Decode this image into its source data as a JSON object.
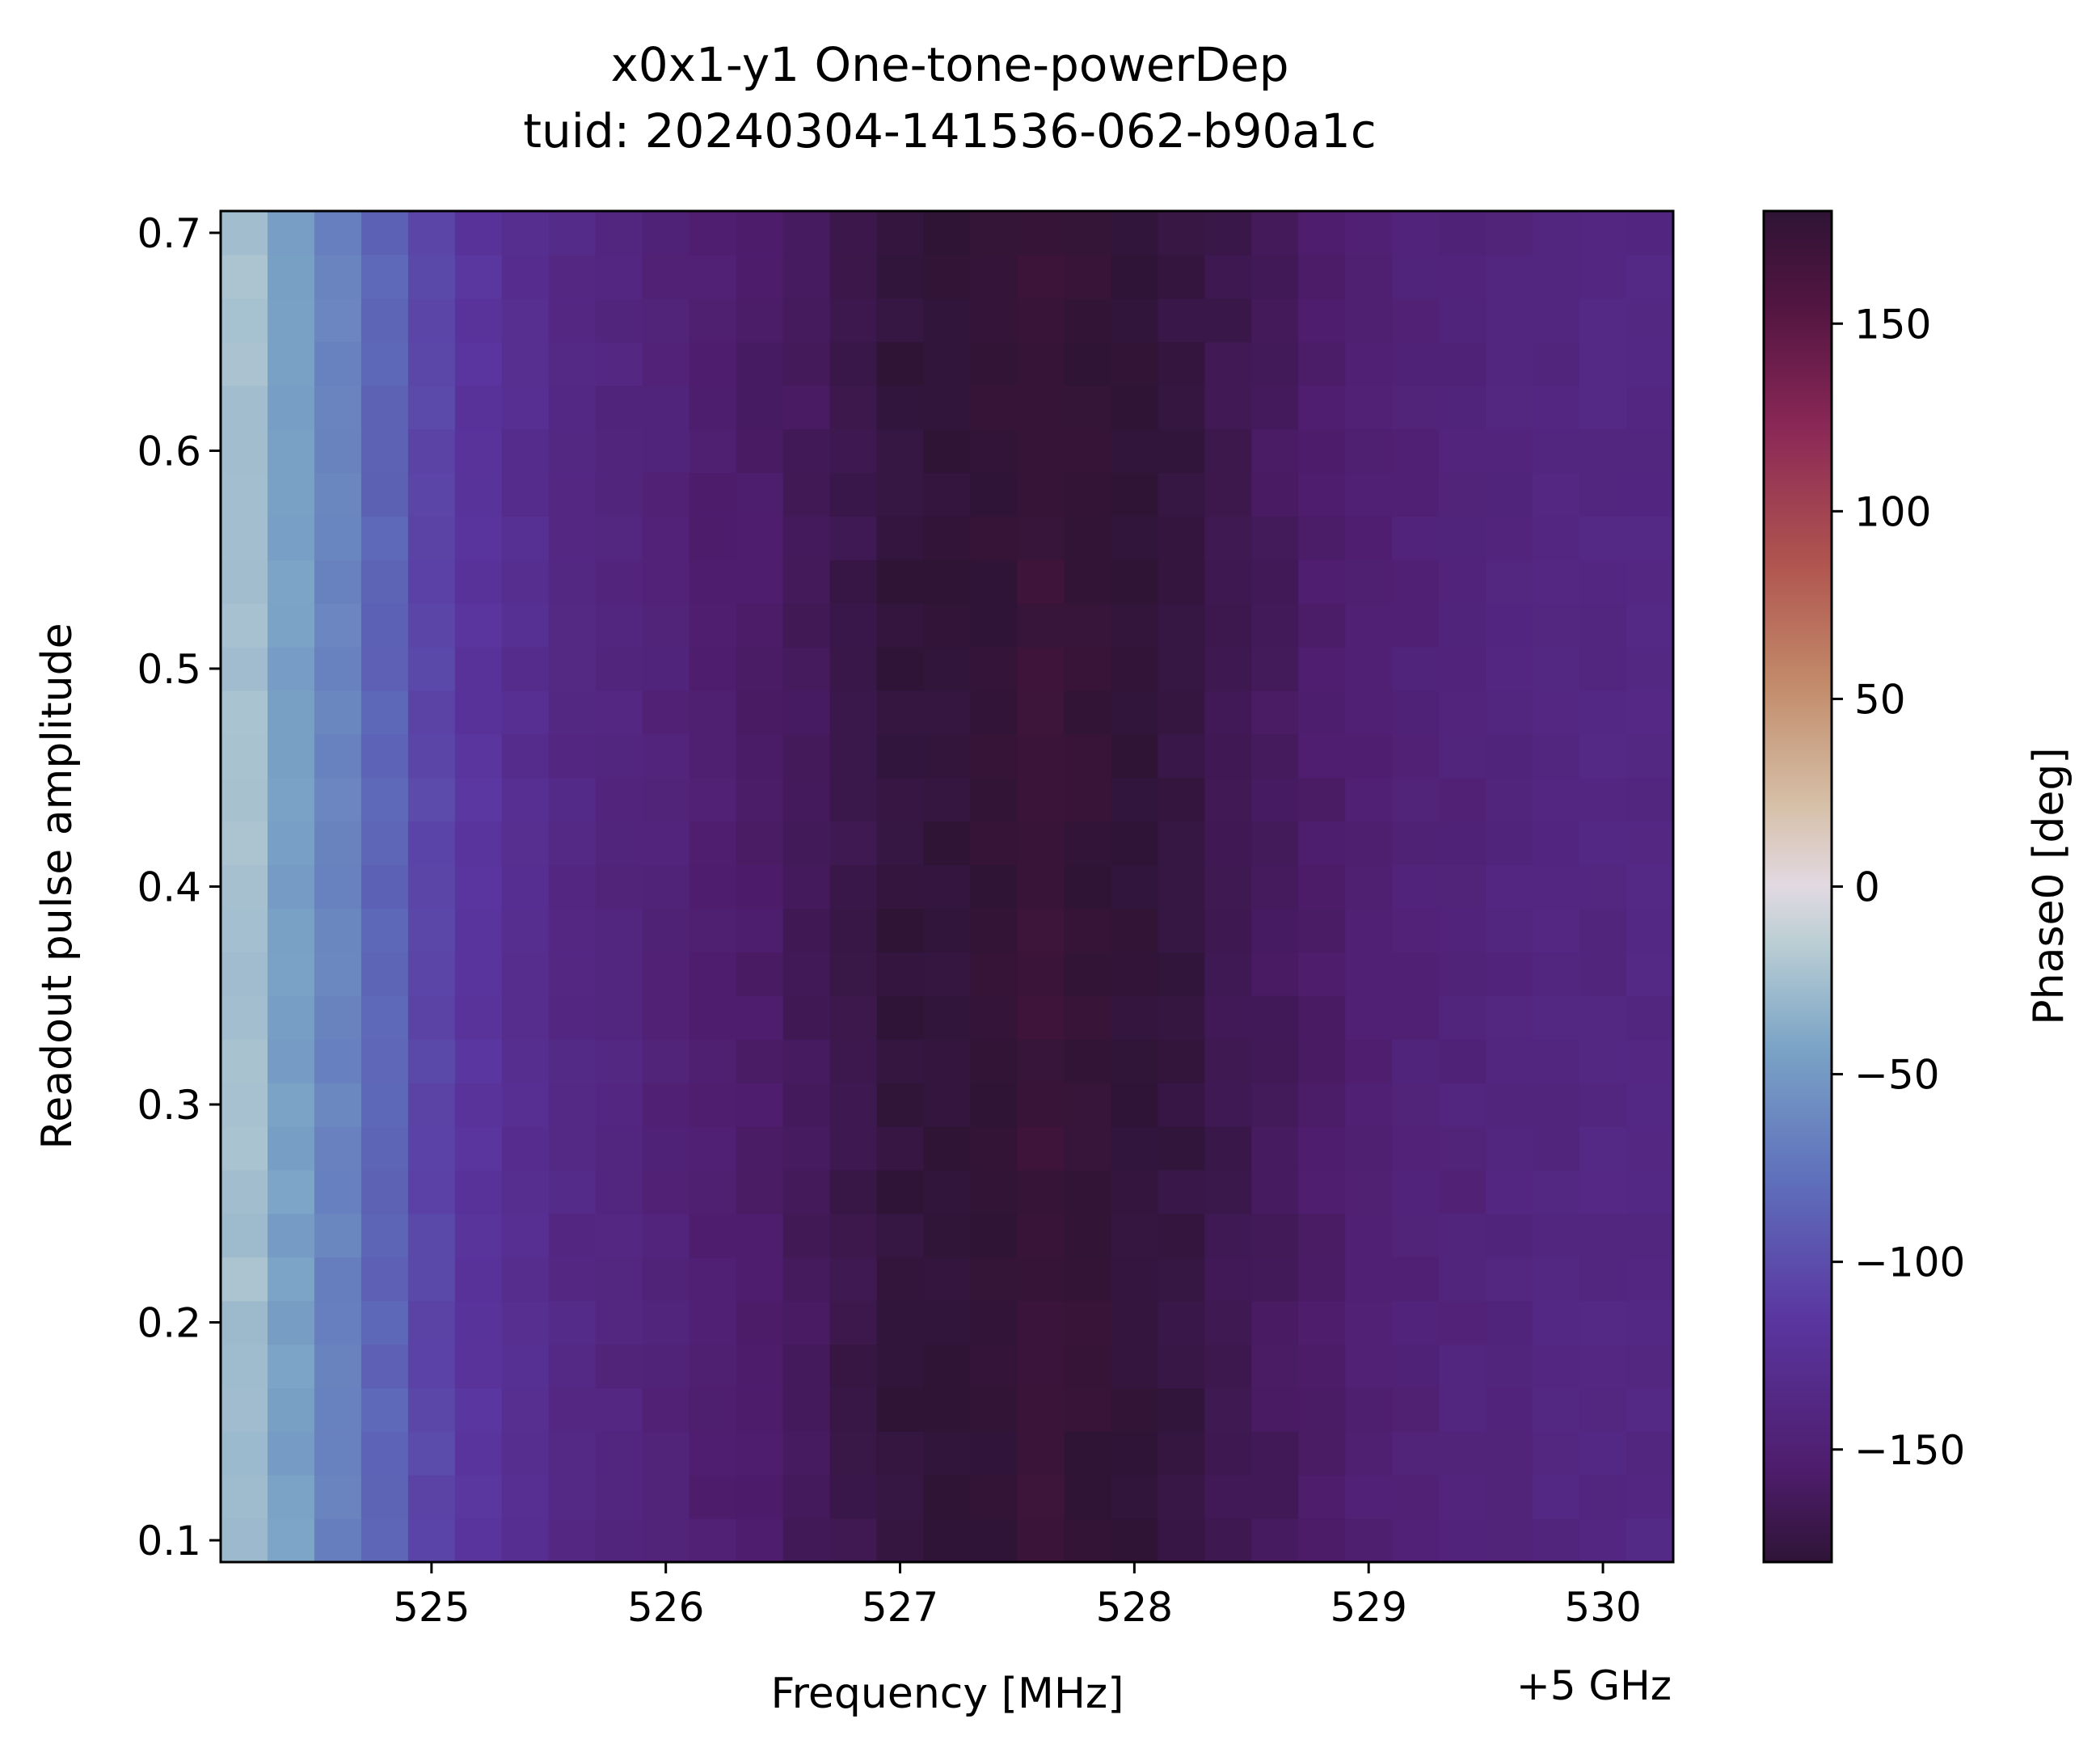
{
  "chart_data": {
    "type": "heatmap",
    "title": "x0x1-y1 One-tone-powerDep",
    "subtitle": "tuid: 20240304-141536-062-b90a1c",
    "xlabel": "Frequency [MHz]",
    "x_offset_label": "+5 GHz",
    "ylabel": "Readout pulse amplitude",
    "colorbar_label": "Phase0 [deg]",
    "colormap": "twilight_shifted",
    "x_ticks": [
      525,
      526,
      527,
      528,
      529,
      530
    ],
    "y_ticks": [
      0.1,
      0.2,
      0.3,
      0.4,
      0.5,
      0.6,
      0.7
    ],
    "colorbar_ticks": [
      -150,
      -100,
      -50,
      0,
      50,
      100,
      150
    ],
    "xlim": [
      524.1,
      530.3
    ],
    "ylim": [
      0.09,
      0.71
    ],
    "clim": [
      -180,
      180
    ],
    "x": [
      524.2,
      524.4,
      524.6,
      524.8,
      525.0,
      525.2,
      525.4,
      525.6,
      525.8,
      526.0,
      526.2,
      526.4,
      526.6,
      526.8,
      527.0,
      527.2,
      527.4,
      527.6,
      527.8,
      528.0,
      528.2,
      528.4,
      528.6,
      528.8,
      529.0,
      529.2,
      529.4,
      529.6,
      529.8,
      530.0,
      530.2
    ],
    "y": [
      0.1,
      0.12,
      0.14,
      0.16,
      0.18,
      0.2,
      0.22,
      0.24,
      0.26,
      0.28,
      0.3,
      0.32,
      0.34,
      0.36,
      0.38,
      0.4,
      0.42,
      0.44,
      0.46,
      0.48,
      0.5,
      0.52,
      0.54,
      0.56,
      0.58,
      0.6,
      0.62,
      0.64,
      0.66,
      0.68,
      0.7
    ],
    "column_profile": [
      -25,
      -45,
      -65,
      -85,
      -105,
      -118,
      -128,
      -136,
      -141,
      -146,
      -152,
      -157,
      -163,
      -170,
      -177,
      -179,
      178,
      172,
      176,
      -179,
      -175,
      -168,
      -162,
      -156,
      -151,
      -147,
      -145,
      -142,
      -140,
      -139,
      -138
    ]
  }
}
